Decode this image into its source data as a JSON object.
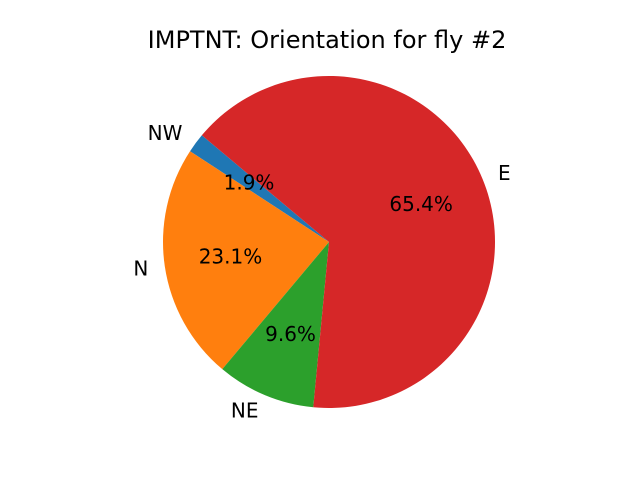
{
  "chart_data": {
    "type": "pie",
    "title": "IMPTNT: Orientation for fly #2",
    "slices": [
      {
        "label": "NW",
        "value": 1.9,
        "pct_label": "1.9%",
        "color": "#1f77b4"
      },
      {
        "label": "N",
        "value": 23.1,
        "pct_label": "23.1%",
        "color": "#ff7f0e"
      },
      {
        "label": "NE",
        "value": 9.6,
        "pct_label": "9.6%",
        "color": "#2ca02c"
      },
      {
        "label": "E",
        "value": 65.4,
        "pct_label": "65.4%",
        "color": "#d62728"
      }
    ],
    "start_angle_deg": 140,
    "direction": "counterclockwise",
    "legend": "none"
  }
}
